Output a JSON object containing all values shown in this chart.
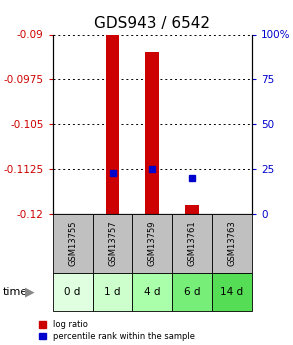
{
  "title": "GDS943 / 6542",
  "samples": [
    "GSM13755",
    "GSM13757",
    "GSM13759",
    "GSM13761",
    "GSM13763"
  ],
  "time_labels": [
    "0 d",
    "1 d",
    "4 d",
    "6 d",
    "14 d"
  ],
  "log_ratio": [
    null,
    -0.09,
    -0.093,
    -0.1185,
    null
  ],
  "percentile_rank": [
    null,
    23,
    25,
    20,
    null
  ],
  "ylim_left": [
    -0.12,
    -0.09
  ],
  "ylim_right": [
    0,
    100
  ],
  "yticks_left": [
    -0.12,
    -0.1125,
    -0.105,
    -0.0975,
    -0.09
  ],
  "yticks_right": [
    0,
    25,
    50,
    75,
    100
  ],
  "ytick_labels_left": [
    "-0.12",
    "-0.1125",
    "-0.105",
    "-0.0975",
    "-0.09"
  ],
  "ytick_labels_right": [
    "0",
    "25",
    "50",
    "75",
    "100%"
  ],
  "bar_color": "#cc0000",
  "dot_color": "#0000cc",
  "bar_width": 0.35,
  "title_fontsize": 11,
  "tick_fontsize": 7.5,
  "background_color": "#ffffff",
  "header_bg": "#c0c0c0",
  "time_bg_colors": [
    "#e0ffe0",
    "#ccffcc",
    "#aaffaa",
    "#77ee77",
    "#55dd55"
  ],
  "grid_color": "#000000"
}
